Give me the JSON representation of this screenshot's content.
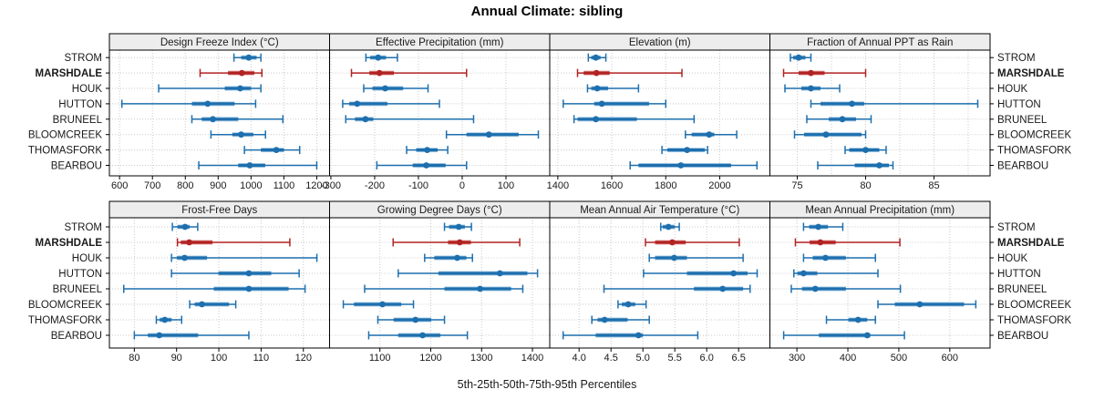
{
  "title": "Annual Climate: sibling",
  "caption": "5th-25th-50th-75th-95th Percentiles",
  "sites": [
    "STROM",
    "MARSHDALE",
    "HOUK",
    "HUTTON",
    "BRUNEEL",
    "BLOOMCREEK",
    "THOMASFORK",
    "BEARBOU"
  ],
  "highlight_site": "MARSHDALE",
  "percentiles": [
    "5th",
    "25th",
    "50th",
    "75th",
    "95th"
  ],
  "colors": {
    "series": "#1d6fae",
    "series_band": "#a9cbe4",
    "highlight": "#b22222",
    "highlight_band": "#e3a4a0",
    "grid": "#c9c9c9",
    "header_bg": "#ededed",
    "panel_border": "#000000",
    "text": "#1a1a1a"
  },
  "chart_data": {
    "type": "dotplot",
    "layout": "2 rows x 4 cols trellis, shared site rows, percentile whiskers (5-25-50-75-95)",
    "panels": [
      {
        "title": "Design Freeze Index (°C)",
        "grid_row": 0,
        "grid_col": 0,
        "xlim": [
          569,
          1239
        ],
        "ticks": [
          600,
          700,
          800,
          900,
          1000,
          1100,
          1200
        ],
        "tick_labels": [
          "600",
          "700",
          "800",
          "900",
          "1000",
          "1100",
          "1200"
        ],
        "grid": [
          600,
          700,
          800,
          900,
          1000,
          1100,
          1200
        ],
        "values": {
          "STROM": [
            948,
            970,
            993,
            1017,
            1030
          ],
          "MARSHDALE": [
            845,
            930,
            972,
            1010,
            1033
          ],
          "HOUK": [
            719,
            920,
            967,
            1000,
            1030
          ],
          "HUTTON": [
            607,
            820,
            868,
            950,
            1014
          ],
          "BRUNEEL": [
            820,
            850,
            884,
            961,
            1097
          ],
          "BLOOMCREEK": [
            878,
            943,
            970,
            1007,
            1044
          ],
          "THOMASFORK": [
            980,
            1030,
            1077,
            1100,
            1148
          ],
          "BEARBOU": [
            841,
            961,
            996,
            1043,
            1200
          ]
        }
      },
      {
        "title": "Effective Precipitation (mm)",
        "grid_row": 0,
        "grid_col": 1,
        "xlim": [
          -303,
          200
        ],
        "ticks": [
          -300,
          -200,
          -100,
          0,
          100
        ],
        "tick_labels": [
          "-300",
          "-200",
          "-100",
          "0",
          "100"
        ],
        "grid": [
          -300,
          -200,
          -100,
          0,
          100
        ],
        "values": {
          "STROM": [
            -220,
            -210,
            -192,
            -174,
            -148
          ],
          "MARSHDALE": [
            -253,
            -212,
            -189,
            -156,
            10
          ],
          "HOUK": [
            -225,
            -205,
            -176,
            -135,
            -78
          ],
          "HUTTON": [
            -273,
            -258,
            -240,
            -171,
            -52
          ],
          "BRUNEEL": [
            -266,
            -245,
            -221,
            -203,
            26
          ],
          "BLOOMCREEK": [
            -36,
            10,
            61,
            129,
            174
          ],
          "THOMASFORK": [
            -127,
            -105,
            -80,
            -56,
            -33
          ],
          "BEARBOU": [
            -195,
            -113,
            -82,
            -38,
            10
          ]
        }
      },
      {
        "title": "Elevation (m)",
        "grid_row": 0,
        "grid_col": 2,
        "xlim": [
          1370,
          2186
        ],
        "ticks": [
          1400,
          1600,
          1800,
          2000
        ],
        "tick_labels": [
          "1400",
          "1600",
          "1800",
          "2000"
        ],
        "grid": [
          1400,
          1600,
          1800,
          2000
        ],
        "values": {
          "STROM": [
            1513,
            1524,
            1541,
            1558,
            1578
          ],
          "MARSHDALE": [
            1473,
            1496,
            1543,
            1592,
            1860
          ],
          "HOUK": [
            1510,
            1524,
            1546,
            1586,
            1699
          ],
          "HUTTON": [
            1420,
            1535,
            1563,
            1738,
            1800
          ],
          "BRUNEEL": [
            1460,
            1473,
            1541,
            1693,
            1905
          ],
          "BLOOMCREEK": [
            1873,
            1896,
            1961,
            1980,
            2063
          ],
          "THOMASFORK": [
            1786,
            1806,
            1879,
            1945,
            1955
          ],
          "BEARBOU": [
            1668,
            1699,
            1856,
            2042,
            2138
          ]
        }
      },
      {
        "title": "Fraction of Annual PPT as Rain",
        "grid_row": 0,
        "grid_col": 3,
        "xlim": [
          73.0,
          89.1
        ],
        "ticks": [
          75,
          80,
          85
        ],
        "tick_labels": [
          "75",
          "80",
          "85"
        ],
        "grid": [
          75,
          77.5,
          80,
          82.5,
          85,
          87.5
        ],
        "values": {
          "STROM": [
            74.5,
            74.7,
            75.1,
            75.6,
            76.0
          ],
          "MARSHDALE": [
            74.0,
            75.1,
            76.0,
            77.0,
            80.0
          ],
          "HOUK": [
            74.1,
            75.3,
            76.0,
            76.7,
            78.1
          ],
          "HUTTON": [
            76.0,
            76.7,
            79.0,
            79.9,
            88.2
          ],
          "BRUNEEL": [
            75.7,
            77.3,
            78.3,
            79.3,
            80.4
          ],
          "BLOOMCREEK": [
            74.8,
            75.5,
            77.1,
            79.7,
            80.0
          ],
          "THOMASFORK": [
            78.5,
            78.8,
            80.0,
            81.0,
            81.5
          ],
          "BEARBOU": [
            76.5,
            79.2,
            81.0,
            81.7,
            82.0
          ]
        }
      },
      {
        "title": "Frost-Free Days",
        "grid_row": 1,
        "grid_col": 0,
        "xlim": [
          74.1,
          126.2
        ],
        "ticks": [
          80,
          90,
          100,
          110,
          120
        ],
        "tick_labels": [
          "80",
          "90",
          "100",
          "110",
          "120"
        ],
        "grid": [
          80,
          90,
          100,
          110,
          120
        ],
        "values": {
          "STROM": [
            89.0,
            90.2,
            92.0,
            93.1,
            95.0
          ],
          "MARSHDALE": [
            90.2,
            91.0,
            93.0,
            98.5,
            116.8
          ],
          "HOUK": [
            88.8,
            90.1,
            91.9,
            97.2,
            123.2
          ],
          "HUTTON": [
            88.8,
            99.9,
            107.1,
            112.4,
            119.0
          ],
          "BRUNEEL": [
            77.5,
            98.8,
            107.1,
            116.5,
            120.4
          ],
          "BLOOMCREEK": [
            93.1,
            94.3,
            96.0,
            102.4,
            104.0
          ],
          "THOMASFORK": [
            85.2,
            86.0,
            87.2,
            88.8,
            91.2
          ],
          "BEARBOU": [
            80.0,
            83.2,
            85.9,
            95.1,
            107.1
          ]
        }
      },
      {
        "title": "Growing Degree Days (°C)",
        "grid_row": 1,
        "grid_col": 1,
        "xlim": [
          1001,
          1434
        ],
        "ticks": [
          1100,
          1200,
          1300,
          1400
        ],
        "tick_labels": [
          "1100",
          "1200",
          "1300",
          "1400"
        ],
        "grid": [
          1100,
          1200,
          1300,
          1400
        ],
        "values": {
          "STROM": [
            1227,
            1236,
            1255,
            1267,
            1280
          ],
          "MARSHDALE": [
            1126,
            1234,
            1257,
            1279,
            1375
          ],
          "HOUK": [
            1188,
            1207,
            1252,
            1270,
            1282
          ],
          "HUTTON": [
            1136,
            1215,
            1336,
            1390,
            1410
          ],
          "BRUNEEL": [
            1070,
            1227,
            1297,
            1358,
            1381
          ],
          "BLOOMCREEK": [
            1028,
            1049,
            1105,
            1142,
            1166
          ],
          "THOMASFORK": [
            1096,
            1127,
            1170,
            1201,
            1227
          ],
          "BEARBOU": [
            1078,
            1136,
            1184,
            1219,
            1272
          ]
        }
      },
      {
        "title": "Mean Annual Air Temperature (°C)",
        "grid_row": 1,
        "grid_col": 2,
        "xlim": [
          3.54,
          6.99
        ],
        "ticks": [
          4.0,
          4.5,
          5.0,
          5.5,
          6.0,
          6.5
        ],
        "tick_labels": [
          "4.0",
          "4.5",
          "5.0",
          "5.5",
          "6.0",
          "6.5"
        ],
        "grid": [
          4.0,
          4.5,
          5.0,
          5.5,
          6.0,
          6.5
        ],
        "values": {
          "STROM": [
            5.28,
            5.31,
            5.4,
            5.5,
            5.57
          ],
          "MARSHDALE": [
            5.04,
            5.19,
            5.46,
            5.67,
            6.51
          ],
          "HOUK": [
            5.1,
            5.19,
            5.49,
            5.69,
            6.57
          ],
          "HUTTON": [
            5.01,
            5.69,
            6.42,
            6.64,
            6.79
          ],
          "BRUNEEL": [
            4.39,
            5.8,
            6.25,
            6.57,
            6.68
          ],
          "BLOOMCREEK": [
            4.61,
            4.67,
            4.77,
            4.88,
            5.05
          ],
          "THOMASFORK": [
            4.2,
            4.29,
            4.4,
            4.76,
            5.1
          ],
          "BEARBOU": [
            3.75,
            4.26,
            4.93,
            5.0,
            5.86
          ]
        }
      },
      {
        "title": "Mean Annual Precipitation (mm)",
        "grid_row": 1,
        "grid_col": 3,
        "xlim": [
          247,
          679
        ],
        "ticks": [
          300,
          400,
          500,
          600
        ],
        "tick_labels": [
          "300",
          "400",
          "500",
          "600"
        ],
        "grid": [
          300,
          400,
          500,
          600
        ],
        "values": {
          "STROM": [
            313,
            324,
            342,
            361,
            390
          ],
          "MARSHDALE": [
            297,
            325,
            346,
            376,
            502
          ],
          "HOUK": [
            313,
            331,
            356,
            396,
            454
          ],
          "HUTTON": [
            294,
            301,
            313,
            340,
            459
          ],
          "BRUNEEL": [
            289,
            310,
            336,
            396,
            503
          ],
          "BLOOMCREEK": [
            459,
            492,
            541,
            628,
            651
          ],
          "THOMASFORK": [
            358,
            401,
            420,
            438,
            454
          ],
          "BEARBOU": [
            274,
            343,
            438,
            444,
            511
          ]
        }
      }
    ]
  }
}
